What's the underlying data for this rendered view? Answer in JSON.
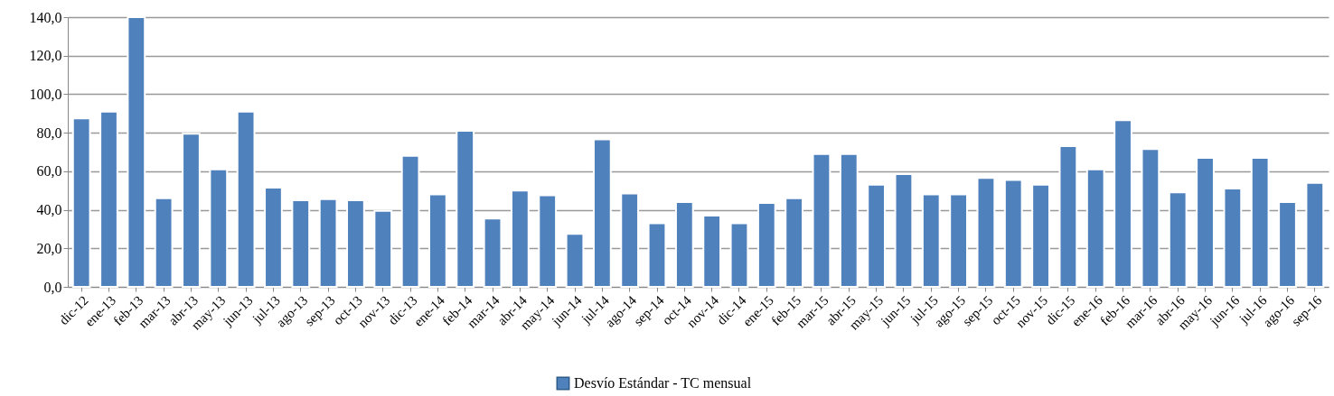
{
  "chart_data": {
    "type": "bar",
    "categories": [
      "dic-12",
      "ene-13",
      "feb-13",
      "mar-13",
      "abr-13",
      "may-13",
      "jun-13",
      "jul-13",
      "ago-13",
      "sep-13",
      "oct-13",
      "nov-13",
      "dic-13",
      "ene-14",
      "feb-14",
      "mar-14",
      "abr-14",
      "may-14",
      "jun-14",
      "jul-14",
      "ago-14",
      "sep-14",
      "oct-14",
      "nov-14",
      "dic-14",
      "ene-15",
      "feb-15",
      "mar-15",
      "abr-15",
      "may-15",
      "jun-15",
      "jul-15",
      "ago-15",
      "sep-15",
      "oct-15",
      "nov-15",
      "dic-15",
      "ene-16",
      "feb-16",
      "mar-16",
      "abr-16",
      "may-16",
      "jun-16",
      "jul-16",
      "ago-16",
      "sep-16"
    ],
    "series": [
      {
        "name": "Desvío Estándar - TC mensual",
        "color": "#4f81bd",
        "values": [
          87.5,
          91,
          140,
          46,
          79.5,
          61,
          91,
          51.5,
          45,
          45.5,
          45,
          39.5,
          68,
          48,
          81,
          35.5,
          50,
          47.5,
          27.5,
          76.5,
          48.5,
          33,
          44,
          37,
          33,
          43.5,
          46,
          69,
          69,
          53,
          58.5,
          48,
          48,
          56.5,
          55.5,
          53,
          73,
          61,
          86.5,
          71.5,
          49,
          67,
          51,
          67,
          44,
          54
        ]
      }
    ],
    "ylim": [
      0,
      140
    ],
    "yticks": [
      {
        "value": 0,
        "label": "0,0"
      },
      {
        "value": 20,
        "label": "20,0"
      },
      {
        "value": 40,
        "label": "40,0"
      },
      {
        "value": 60,
        "label": "60,0"
      },
      {
        "value": 80,
        "label": "80,0"
      },
      {
        "value": 100,
        "label": "100,0"
      },
      {
        "value": 120,
        "label": "120,0"
      },
      {
        "value": 140,
        "label": "140,0"
      }
    ],
    "grid": "y",
    "legend": "bottom"
  }
}
